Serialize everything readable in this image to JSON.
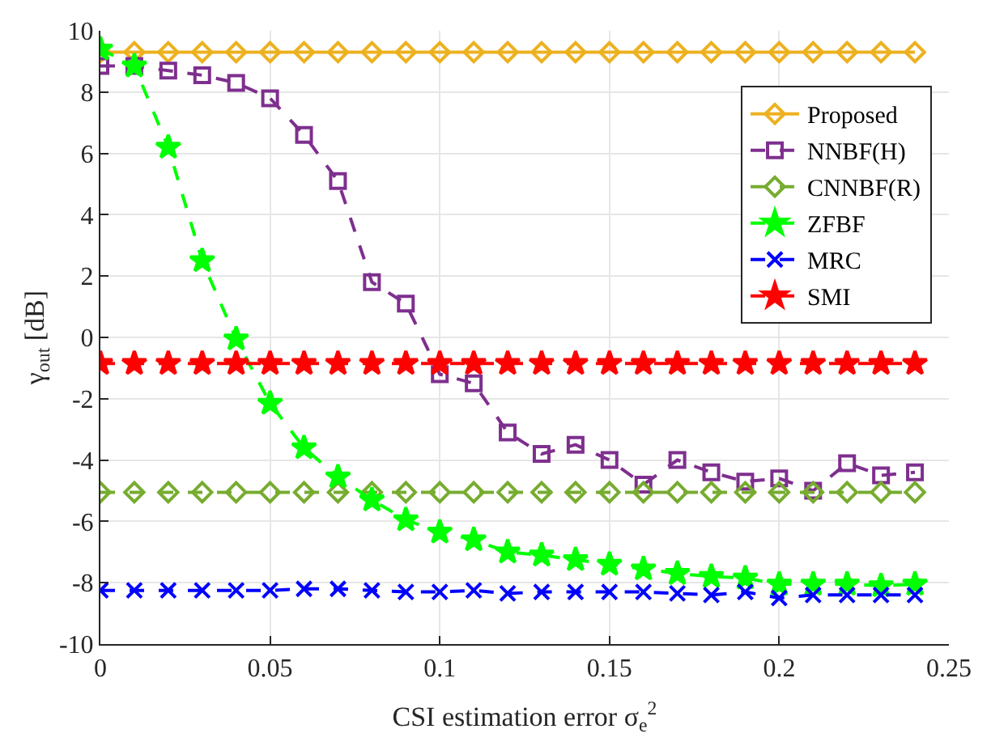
{
  "chart_data": {
    "type": "line",
    "xlabel": "CSI estimation error σ$_{e}$$^{2}$",
    "ylabel": "γ$_{out}$ [dB]",
    "x": [
      0,
      0.01,
      0.02,
      0.03,
      0.04,
      0.05,
      0.06,
      0.07,
      0.08,
      0.09,
      0.1,
      0.11,
      0.12,
      0.13,
      0.14,
      0.15,
      0.16,
      0.17,
      0.18,
      0.19,
      0.2,
      0.21,
      0.22,
      0.23,
      0.24
    ],
    "series": [
      {
        "name": "Proposed",
        "color": "#edb120",
        "marker": "diamond",
        "line_style": "solid",
        "values": [
          9.3,
          9.3,
          9.3,
          9.3,
          9.3,
          9.3,
          9.3,
          9.3,
          9.3,
          9.3,
          9.3,
          9.3,
          9.3,
          9.3,
          9.3,
          9.3,
          9.3,
          9.3,
          9.3,
          9.3,
          9.3,
          9.3,
          9.3,
          9.3,
          9.3
        ]
      },
      {
        "name": "NNBF(H)",
        "color": "#7e2f8e",
        "marker": "square",
        "line_style": "dashed",
        "values": [
          8.85,
          8.85,
          8.7,
          8.55,
          8.3,
          7.8,
          6.6,
          5.1,
          1.8,
          1.1,
          -1.2,
          -1.5,
          -3.1,
          -3.8,
          -3.5,
          -4.0,
          -4.8,
          -4.0,
          -4.4,
          -4.7,
          -4.6,
          -5.0,
          -4.1,
          -4.5,
          -4.4
        ]
      },
      {
        "name": "CNNBF(R)",
        "color": "#77ac30",
        "marker": "diamond",
        "line_style": "dashed",
        "values": [
          -5.05,
          -5.05,
          -5.05,
          -5.05,
          -5.05,
          -5.05,
          -5.05,
          -5.05,
          -5.05,
          -5.05,
          -5.05,
          -5.05,
          -5.05,
          -5.05,
          -5.05,
          -5.05,
          -5.05,
          -5.05,
          -5.05,
          -5.05,
          -5.05,
          -5.05,
          -5.05,
          -5.05,
          -5.05
        ]
      },
      {
        "name": "ZFBF",
        "color": "#00ff00",
        "marker": "star",
        "line_style": "dashed",
        "values": [
          9.4,
          8.85,
          6.2,
          2.5,
          -0.05,
          -2.15,
          -3.6,
          -4.55,
          -5.3,
          -5.95,
          -6.35,
          -6.6,
          -7.0,
          -7.1,
          -7.25,
          -7.4,
          -7.55,
          -7.7,
          -7.8,
          -7.85,
          -8.05,
          -8.05,
          -8.05,
          -8.1,
          -8.05
        ]
      },
      {
        "name": "MRC",
        "color": "#0000ff",
        "marker": "cross",
        "line_style": "dashed",
        "values": [
          -8.25,
          -8.25,
          -8.25,
          -8.25,
          -8.25,
          -8.25,
          -8.2,
          -8.2,
          -8.25,
          -8.3,
          -8.3,
          -8.25,
          -8.35,
          -8.3,
          -8.3,
          -8.3,
          -8.3,
          -8.35,
          -8.4,
          -8.3,
          -8.5,
          -8.4,
          -8.4,
          -8.4,
          -8.4
        ]
      },
      {
        "name": "SMI",
        "color": "#ff0000",
        "marker": "star",
        "line_style": "dashed",
        "values": [
          -0.85,
          -0.85,
          -0.85,
          -0.85,
          -0.85,
          -0.85,
          -0.85,
          -0.85,
          -0.85,
          -0.85,
          -0.85,
          -0.85,
          -0.85,
          -0.85,
          -0.85,
          -0.85,
          -0.85,
          -0.85,
          -0.85,
          -0.85,
          -0.85,
          -0.85,
          -0.85,
          -0.85,
          -0.85
        ]
      }
    ],
    "xlim": [
      0,
      0.25
    ],
    "xticks": [
      0,
      0.05,
      0.1,
      0.15,
      0.2,
      0.25
    ],
    "ylim": [
      -10,
      10
    ],
    "yticks": [
      -10,
      -8,
      -6,
      -4,
      -2,
      0,
      2,
      4,
      6,
      8,
      10
    ],
    "grid": true,
    "legend": "top right"
  }
}
